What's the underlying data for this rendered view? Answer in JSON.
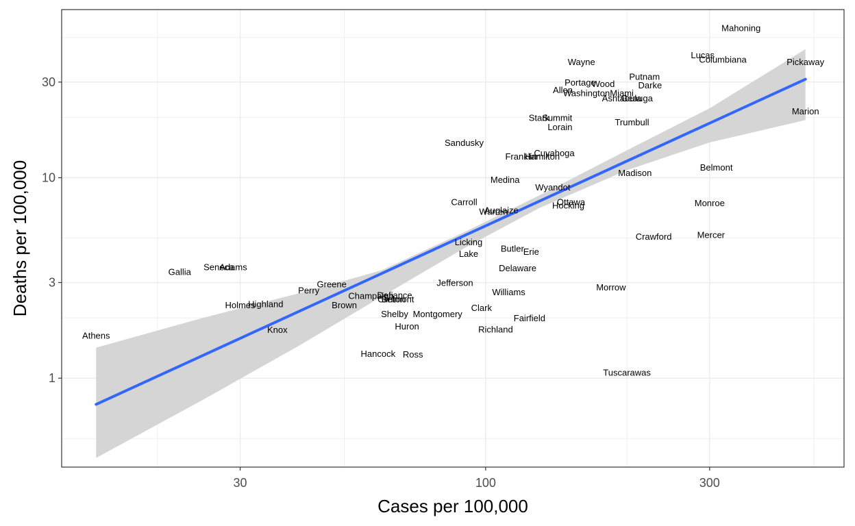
{
  "chart_data": {
    "type": "scatter",
    "title": "",
    "xlabel": "Cases per 100,000",
    "ylabel": "Deaths per 100,000",
    "x_scale": "log10",
    "y_scale": "log10",
    "xlim": [
      12.5,
      580
    ],
    "ylim": [
      0.36,
      69
    ],
    "x_ticks": [
      30,
      100,
      300
    ],
    "x_tick_labels": [
      "30",
      "100",
      "300"
    ],
    "y_ticks": [
      1,
      3,
      10,
      30
    ],
    "y_tick_labels": [
      "1",
      "3",
      "10",
      "30"
    ],
    "grid": true,
    "legend": "none",
    "colors": {
      "trend": "#3366ff",
      "band": "#d3d3d3",
      "panel_border": "#333333",
      "grid": "#ebebeb"
    },
    "points": [
      {
        "label": "Mahoning",
        "x": 350,
        "y": 56
      },
      {
        "label": "Lucas",
        "x": 290,
        "y": 41
      },
      {
        "label": "Columbiana",
        "x": 320,
        "y": 39
      },
      {
        "label": "Pickaway",
        "x": 480,
        "y": 38
      },
      {
        "label": "Wayne",
        "x": 160,
        "y": 38
      },
      {
        "label": "Putnam",
        "x": 218,
        "y": 32
      },
      {
        "label": "Portage",
        "x": 159,
        "y": 30
      },
      {
        "label": "Wood",
        "x": 178,
        "y": 29.5
      },
      {
        "label": "Darke",
        "x": 224,
        "y": 29
      },
      {
        "label": "Allen",
        "x": 146,
        "y": 27.5
      },
      {
        "label": "Washington",
        "x": 164,
        "y": 26.5
      },
      {
        "label": "Miami",
        "x": 195,
        "y": 26.5
      },
      {
        "label": "Ashtabula",
        "x": 195,
        "y": 25
      },
      {
        "label": "Geauga",
        "x": 210,
        "y": 25
      },
      {
        "label": "Marion",
        "x": 480,
        "y": 21.5
      },
      {
        "label": "Stark",
        "x": 130,
        "y": 20
      },
      {
        "label": "Summit",
        "x": 142,
        "y": 20
      },
      {
        "label": "Trumbull",
        "x": 205,
        "y": 19
      },
      {
        "label": "Lorain",
        "x": 144,
        "y": 18
      },
      {
        "label": "Sandusky",
        "x": 90,
        "y": 15
      },
      {
        "label": "Cuyahoga",
        "x": 140,
        "y": 13.3
      },
      {
        "label": "Franklin",
        "x": 119,
        "y": 12.8
      },
      {
        "label": "Hamilton",
        "x": 132,
        "y": 12.8
      },
      {
        "label": "Belmont",
        "x": 310,
        "y": 11.3
      },
      {
        "label": "Madison",
        "x": 208,
        "y": 10.6
      },
      {
        "label": "Medina",
        "x": 110,
        "y": 9.8
      },
      {
        "label": "Wyandot",
        "x": 139,
        "y": 9.0
      },
      {
        "label": "Ottawa",
        "x": 152,
        "y": 7.6
      },
      {
        "label": "Carroll",
        "x": 90,
        "y": 7.6
      },
      {
        "label": "Hocking",
        "x": 150,
        "y": 7.3
      },
      {
        "label": "Monroe",
        "x": 300,
        "y": 7.5
      },
      {
        "label": "Auglaize",
        "x": 108,
        "y": 6.9
      },
      {
        "label": "Warren",
        "x": 104,
        "y": 6.8
      },
      {
        "label": "Licking",
        "x": 92,
        "y": 4.8
      },
      {
        "label": "Crawford",
        "x": 228,
        "y": 5.1
      },
      {
        "label": "Mercer",
        "x": 302,
        "y": 5.2
      },
      {
        "label": "Butler",
        "x": 114,
        "y": 4.45
      },
      {
        "label": "Erie",
        "x": 125,
        "y": 4.3
      },
      {
        "label": "Lake",
        "x": 92,
        "y": 4.2
      },
      {
        "label": "Seneca",
        "x": 27,
        "y": 3.6
      },
      {
        "label": "Adams",
        "x": 29,
        "y": 3.6
      },
      {
        "label": "Delaware",
        "x": 117,
        "y": 3.55
      },
      {
        "label": "Gallia",
        "x": 22.3,
        "y": 3.4
      },
      {
        "label": "Jefferson",
        "x": 86,
        "y": 3.0
      },
      {
        "label": "Greene",
        "x": 47,
        "y": 2.95
      },
      {
        "label": "Perry",
        "x": 42,
        "y": 2.75
      },
      {
        "label": "Morrow",
        "x": 185,
        "y": 2.85
      },
      {
        "label": "Williams",
        "x": 112,
        "y": 2.7
      },
      {
        "label": "Champaign",
        "x": 57,
        "y": 2.58
      },
      {
        "label": "Defiance",
        "x": 64,
        "y": 2.6
      },
      {
        "label": "Clinton",
        "x": 63,
        "y": 2.48
      },
      {
        "label": "Belmont",
        "x": 65,
        "y": 2.48
      },
      {
        "label": "Highland",
        "x": 34,
        "y": 2.35
      },
      {
        "label": "Holmes",
        "x": 30,
        "y": 2.32
      },
      {
        "label": "Brown",
        "x": 50,
        "y": 2.32
      },
      {
        "label": "Clark",
        "x": 98,
        "y": 2.25
      },
      {
        "label": "Montgomery",
        "x": 79,
        "y": 2.1
      },
      {
        "label": "Shelby",
        "x": 64,
        "y": 2.1
      },
      {
        "label": "Fairfield",
        "x": 124,
        "y": 2.0
      },
      {
        "label": "Huron",
        "x": 68,
        "y": 1.82
      },
      {
        "label": "Richland",
        "x": 105,
        "y": 1.76
      },
      {
        "label": "Knox",
        "x": 36,
        "y": 1.75
      },
      {
        "label": "Athens",
        "x": 14.8,
        "y": 1.64
      },
      {
        "label": "Hancock",
        "x": 59,
        "y": 1.33
      },
      {
        "label": "Ross",
        "x": 70,
        "y": 1.32
      },
      {
        "label": "Tuscarawas",
        "x": 200,
        "y": 1.07
      }
    ],
    "fit_line": {
      "x": [
        14.8,
        480
      ],
      "y": [
        0.74,
        31
      ]
    },
    "confidence_band": {
      "x": [
        14.8,
        25,
        40,
        60,
        90,
        130,
        200,
        300,
        480
      ],
      "lower": [
        0.4,
        0.78,
        1.45,
        2.55,
        4.45,
        7.05,
        10.9,
        15.0,
        19.4
      ],
      "upper": [
        1.42,
        2.0,
        2.65,
        3.45,
        5.35,
        8.15,
        13.7,
        22.2,
        43.8
      ]
    }
  }
}
